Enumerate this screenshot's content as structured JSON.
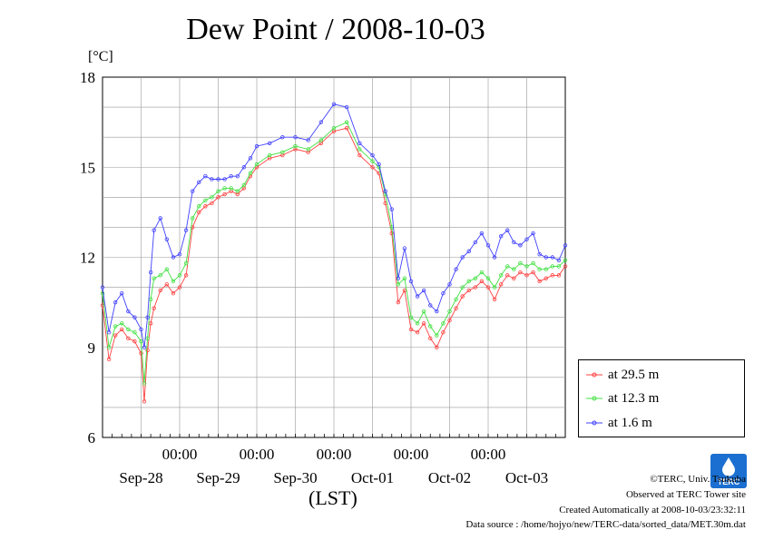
{
  "page": {
    "title": "Dew Point / 2008-10-03",
    "unit_label": "[°C]",
    "time_zone_label": "(LST)",
    "footer": {
      "copyright": "©TERC, Univ. Tsukuba",
      "observed": "Observed at TERC Tower site",
      "created": "Created Automatically at 2008-10-03/23:32:11",
      "source": "Data source : /home/hojyo/new/TERC-data/sorted_data/MET.30m.dat"
    },
    "logo_text": "TERC"
  },
  "chart_data": {
    "type": "line",
    "title": "Dew Point / 2008-10-03",
    "ylabel": "[°C]",
    "xlabel": "(LST)",
    "ylim": [
      6,
      18
    ],
    "yticks": [
      6,
      9,
      12,
      15,
      18
    ],
    "xlim_hours": [
      0,
      144
    ],
    "x_time_ticks": [
      "00:00",
      "00:00",
      "00:00",
      "00:00",
      "00:00"
    ],
    "x_date_labels": [
      "Sep-28",
      "Sep-29",
      "Sep-30",
      "Oct-01",
      "Oct-02",
      "Oct-03"
    ],
    "grid": true,
    "legend_position": "bottom-right",
    "series": [
      {
        "name": "at 29.5 m",
        "color": "#ff4040",
        "x_hours": [
          0,
          2,
          4,
          6,
          8,
          10,
          12,
          13,
          14,
          15,
          16,
          18,
          20,
          22,
          24,
          26,
          28,
          30,
          32,
          34,
          36,
          38,
          40,
          42,
          44,
          46,
          48,
          52,
          56,
          60,
          64,
          68,
          72,
          76,
          80,
          84,
          86,
          88,
          90,
          92,
          94,
          96,
          98,
          100,
          102,
          104,
          106,
          108,
          110,
          112,
          114,
          116,
          118,
          120,
          122,
          124,
          126,
          128,
          130,
          132,
          134,
          136,
          138,
          140,
          142,
          144
        ],
        "values": [
          10.4,
          8.6,
          9.4,
          9.6,
          9.3,
          9.2,
          8.8,
          7.2,
          8.9,
          9.8,
          10.3,
          10.9,
          11.1,
          10.8,
          11.0,
          11.4,
          13.0,
          13.5,
          13.7,
          13.8,
          14.0,
          14.1,
          14.2,
          14.1,
          14.3,
          14.7,
          15.0,
          15.3,
          15.4,
          15.6,
          15.5,
          15.8,
          16.2,
          16.3,
          15.4,
          15.0,
          14.8,
          13.8,
          12.8,
          10.5,
          10.9,
          9.6,
          9.5,
          9.8,
          9.3,
          9.0,
          9.5,
          9.9,
          10.3,
          10.7,
          10.9,
          11.0,
          11.2,
          11.0,
          10.6,
          11.1,
          11.4,
          11.3,
          11.5,
          11.4,
          11.5,
          11.2,
          11.3,
          11.4,
          11.4,
          11.7
        ]
      },
      {
        "name": "at 12.3 m",
        "color": "#40e040",
        "x_hours": [
          0,
          2,
          4,
          6,
          8,
          10,
          12,
          13,
          14,
          15,
          16,
          18,
          20,
          22,
          24,
          26,
          28,
          30,
          32,
          34,
          36,
          38,
          40,
          42,
          44,
          46,
          48,
          52,
          56,
          60,
          64,
          68,
          72,
          76,
          80,
          84,
          86,
          88,
          90,
          92,
          94,
          96,
          98,
          100,
          102,
          104,
          106,
          108,
          110,
          112,
          114,
          116,
          118,
          120,
          122,
          124,
          126,
          128,
          130,
          132,
          134,
          136,
          138,
          140,
          142,
          144
        ],
        "values": [
          10.8,
          9.0,
          9.7,
          9.8,
          9.6,
          9.5,
          9.2,
          7.8,
          9.3,
          10.6,
          11.3,
          11.4,
          11.6,
          11.2,
          11.4,
          11.8,
          13.3,
          13.7,
          13.9,
          14.0,
          14.2,
          14.3,
          14.3,
          14.2,
          14.4,
          14.8,
          15.1,
          15.4,
          15.5,
          15.7,
          15.6,
          15.9,
          16.3,
          16.5,
          15.6,
          15.2,
          15.0,
          14.1,
          13.0,
          11.1,
          11.3,
          10.0,
          9.8,
          10.2,
          9.7,
          9.4,
          9.8,
          10.2,
          10.6,
          11.0,
          11.2,
          11.3,
          11.5,
          11.3,
          11.0,
          11.4,
          11.7,
          11.6,
          11.8,
          11.7,
          11.8,
          11.6,
          11.6,
          11.7,
          11.7,
          11.9
        ]
      },
      {
        "name": "at 1.6 m",
        "color": "#4040ff",
        "x_hours": [
          0,
          2,
          4,
          6,
          8,
          10,
          12,
          13,
          14,
          15,
          16,
          18,
          20,
          22,
          24,
          26,
          28,
          30,
          32,
          34,
          36,
          38,
          40,
          42,
          44,
          46,
          48,
          52,
          56,
          60,
          64,
          68,
          72,
          76,
          80,
          84,
          86,
          88,
          90,
          92,
          94,
          96,
          98,
          100,
          102,
          104,
          106,
          108,
          110,
          112,
          114,
          116,
          118,
          120,
          122,
          124,
          126,
          128,
          130,
          132,
          134,
          136,
          138,
          140,
          142,
          144
        ],
        "values": [
          11.0,
          9.5,
          10.5,
          10.8,
          10.2,
          10.0,
          9.6,
          9.0,
          10.0,
          11.5,
          12.9,
          13.3,
          12.6,
          12.0,
          12.1,
          12.9,
          14.2,
          14.5,
          14.7,
          14.6,
          14.6,
          14.6,
          14.7,
          14.7,
          15.0,
          15.3,
          15.7,
          15.8,
          16.0,
          16.0,
          15.9,
          16.5,
          17.1,
          17.0,
          15.8,
          15.4,
          15.1,
          14.2,
          13.6,
          11.3,
          12.3,
          11.2,
          10.7,
          10.9,
          10.4,
          10.2,
          10.8,
          11.1,
          11.6,
          12.0,
          12.2,
          12.5,
          12.8,
          12.4,
          12.0,
          12.7,
          12.9,
          12.5,
          12.4,
          12.6,
          12.8,
          12.1,
          12.0,
          12.0,
          11.9,
          12.4
        ]
      }
    ]
  }
}
